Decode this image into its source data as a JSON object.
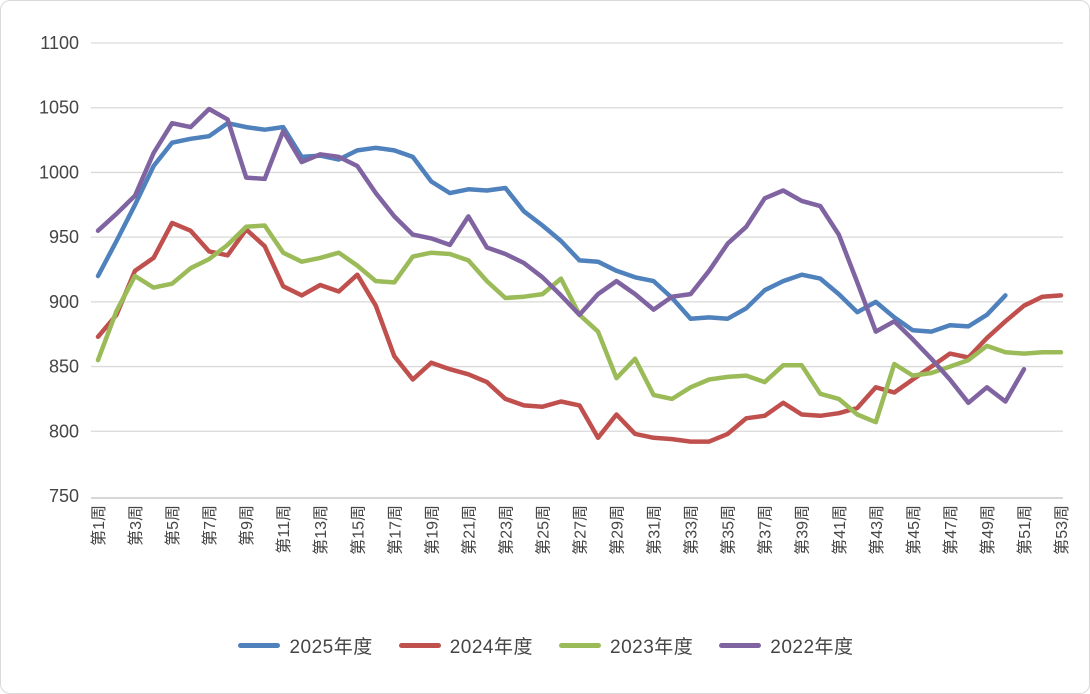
{
  "chart_data": {
    "type": "line",
    "title": "",
    "xlabel": "",
    "ylabel": "",
    "grid": true,
    "legend_position": "bottom",
    "y_axis": {
      "min": 750,
      "max": 1100,
      "step": 50,
      "tick_labels": [
        "750",
        "800",
        "850",
        "900",
        "950",
        "1000",
        "1050",
        "1100"
      ]
    },
    "x_axis": {
      "weeks_total": 53,
      "tick_labels": [
        "第1周",
        "第3周",
        "第5周",
        "第7周",
        "第9周",
        "第11周",
        "第13周",
        "第15周",
        "第17周",
        "第19周",
        "第21周",
        "第23周",
        "第25周",
        "第27周",
        "第29周",
        "第31周",
        "第33周",
        "第35周",
        "第37周",
        "第39周",
        "第41周",
        "第43周",
        "第45周",
        "第47周",
        "第49周",
        "第51周",
        "第53周"
      ]
    },
    "series": [
      {
        "name": "2025年度",
        "color": "#4F81BD",
        "values": [
          920,
          947,
          975,
          1005,
          1023,
          1026,
          1028,
          1038,
          1035,
          1033,
          1035,
          1012,
          1013,
          1010,
          1017,
          1019,
          1017,
          1012,
          993,
          984,
          987,
          986,
          988,
          970,
          959,
          947,
          932,
          931,
          924,
          919,
          916,
          903,
          887,
          888,
          887,
          895,
          909,
          916,
          921,
          918,
          906,
          892,
          900,
          888,
          878,
          877,
          882,
          881,
          890,
          905,
          null,
          null,
          null
        ]
      },
      {
        "name": "2024年度",
        "color": "#C0504D",
        "values": [
          873,
          890,
          924,
          934,
          961,
          955,
          939,
          936,
          956,
          943,
          912,
          905,
          913,
          908,
          921,
          897,
          858,
          840,
          853,
          848,
          844,
          838,
          825,
          820,
          819,
          823,
          820,
          795,
          813,
          798,
          795,
          794,
          792,
          792,
          798,
          810,
          812,
          822,
          813,
          812,
          814,
          818,
          834,
          830,
          840,
          850,
          860,
          857,
          872,
          885,
          897,
          904,
          905
        ]
      },
      {
        "name": "2023年度",
        "color": "#9BBB59",
        "values": [
          855,
          893,
          920,
          911,
          914,
          926,
          933,
          944,
          958,
          959,
          938,
          931,
          934,
          938,
          928,
          916,
          915,
          935,
          938,
          937,
          932,
          916,
          903,
          904,
          906,
          918,
          890,
          877,
          841,
          856,
          828,
          825,
          834,
          840,
          842,
          843,
          838,
          851,
          851,
          829,
          825,
          813,
          807,
          852,
          843,
          845,
          850,
          855,
          866,
          861,
          860,
          861,
          861
        ]
      },
      {
        "name": "2022年度",
        "color": "#8064A2",
        "values": [
          955,
          968,
          982,
          1015,
          1038,
          1035,
          1049,
          1041,
          996,
          995,
          1032,
          1008,
          1014,
          1012,
          1005,
          984,
          966,
          952,
          949,
          944,
          966,
          942,
          937,
          930,
          919,
          905,
          890,
          906,
          916,
          906,
          894,
          904,
          906,
          924,
          945,
          958,
          980,
          986,
          978,
          974,
          952,
          915,
          877,
          885,
          871,
          856,
          840,
          822,
          834,
          823,
          848,
          null,
          null
        ]
      }
    ],
    "colors": {
      "gridline": "#d9d9d9",
      "axis_line": "#bfbfbf",
      "tick_text": "#454545"
    }
  },
  "legend": {
    "items": [
      {
        "label": "2025年度"
      },
      {
        "label": "2024年度"
      },
      {
        "label": "2023年度"
      },
      {
        "label": "2022年度"
      }
    ]
  }
}
